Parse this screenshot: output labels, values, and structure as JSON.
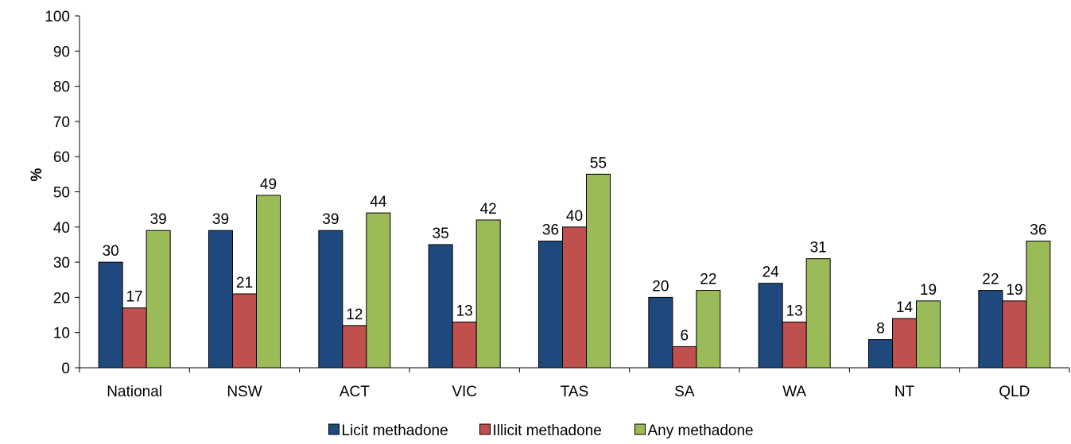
{
  "chart_data": {
    "type": "bar",
    "title": "",
    "xlabel": "",
    "ylabel": "%",
    "ylim": [
      0,
      100
    ],
    "yticks": [
      0,
      10,
      20,
      30,
      40,
      50,
      60,
      70,
      80,
      90,
      100
    ],
    "grid": false,
    "legend_position": "bottom",
    "categories": [
      "National",
      "NSW",
      "ACT",
      "VIC",
      "TAS",
      "SA",
      "WA",
      "NT",
      "QLD"
    ],
    "series": [
      {
        "name": "Licit methadone",
        "color": "#1F497D",
        "values": [
          30,
          39,
          39,
          35,
          36,
          20,
          24,
          8,
          22
        ]
      },
      {
        "name": "Illicit methadone",
        "color": "#C0504D",
        "values": [
          17,
          21,
          12,
          13,
          40,
          6,
          13,
          14,
          19
        ]
      },
      {
        "name": "Any methadone",
        "color": "#9BBB59",
        "values": [
          39,
          49,
          44,
          42,
          55,
          22,
          31,
          19,
          36
        ]
      }
    ]
  }
}
